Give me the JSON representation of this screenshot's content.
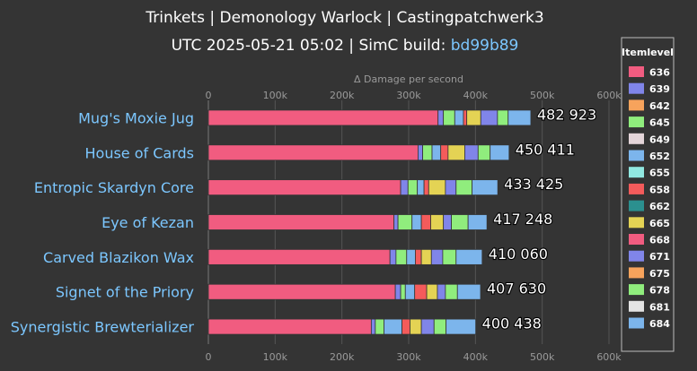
{
  "header": {
    "title": "Trinkets | Demonology Warlock | Castingpatchwerk3",
    "subtitle_prefix": "UTC 2025-05-21 05:02 | SimC build: ",
    "build_link": "bd99b89"
  },
  "colors": {
    "background": "#343434",
    "link": "#7cc7ff",
    "grid": "#555555",
    "axis_text": "#9a9a9a"
  },
  "chart_data": {
    "type": "bar",
    "orientation": "horizontal",
    "stacked": true,
    "x_axis_title": "Δ Damage per second",
    "xlim": [
      0,
      600000
    ],
    "x_ticks": [
      0,
      100000,
      200000,
      300000,
      400000,
      500000,
      600000
    ],
    "x_tick_labels": [
      "0",
      "100k",
      "200k",
      "300k",
      "400k",
      "500k",
      "600k"
    ],
    "grid": true,
    "legend": {
      "title": "Itemlevel",
      "position": "right",
      "entries": [
        {
          "label": "636",
          "color": "#f15c80"
        },
        {
          "label": "639",
          "color": "#8085e9"
        },
        {
          "label": "642",
          "color": "#f7a35c"
        },
        {
          "label": "645",
          "color": "#90ed7d"
        },
        {
          "label": "649",
          "color": "#e4d5d9"
        },
        {
          "label": "652",
          "color": "#7cb5ec"
        },
        {
          "label": "655",
          "color": "#91e8e1"
        },
        {
          "label": "658",
          "color": "#f45b5b"
        },
        {
          "label": "662",
          "color": "#2b908f"
        },
        {
          "label": "665",
          "color": "#e4d354"
        },
        {
          "label": "668",
          "color": "#f15c80"
        },
        {
          "label": "671",
          "color": "#8085e9"
        },
        {
          "label": "675",
          "color": "#f7a35c"
        },
        {
          "label": "678",
          "color": "#90ed7d"
        },
        {
          "label": "681",
          "color": "#e4e4e4"
        },
        {
          "label": "684",
          "color": "#7cb5ec"
        }
      ]
    },
    "categories": [
      "Mug's Moxie Jug",
      "House of Cards",
      "Entropic Skardyn Core",
      "Eye of Kezan",
      "Carved Blazikon Wax",
      "Signet of the Priory",
      "Synergistic Brewterializer"
    ],
    "totals": [
      482923,
      450411,
      433425,
      417248,
      410060,
      407630,
      400438
    ],
    "total_labels": [
      "482 923",
      "450 411",
      "433 425",
      "417 248",
      "410 060",
      "407 630",
      "400 438"
    ],
    "segment_colors": [
      "#f15c80",
      "#8085e9",
      "#90ed7d",
      "#7cb5ec",
      "#f45b5b",
      "#e4d354",
      "#8085e9",
      "#90ed7d",
      "#7cb5ec"
    ],
    "segments": [
      [
        344000,
        8000,
        17000,
        13000,
        5000,
        21000,
        25000,
        16000,
        33923
      ],
      [
        314000,
        7000,
        14000,
        13000,
        11000,
        25000,
        20000,
        18000,
        28411
      ],
      [
        288000,
        11000,
        14000,
        10000,
        7000,
        25000,
        16000,
        24000,
        38425
      ],
      [
        278000,
        6000,
        21000,
        14000,
        14000,
        19000,
        12000,
        25000,
        28248
      ],
      [
        272000,
        9000,
        16000,
        13000,
        9000,
        15000,
        17000,
        20000,
        39060
      ],
      [
        280000,
        8000,
        7000,
        14000,
        18000,
        16000,
        12000,
        18000,
        34630
      ],
      [
        244000,
        6000,
        13000,
        27000,
        12000,
        17000,
        19000,
        18000,
        44438
      ]
    ]
  }
}
